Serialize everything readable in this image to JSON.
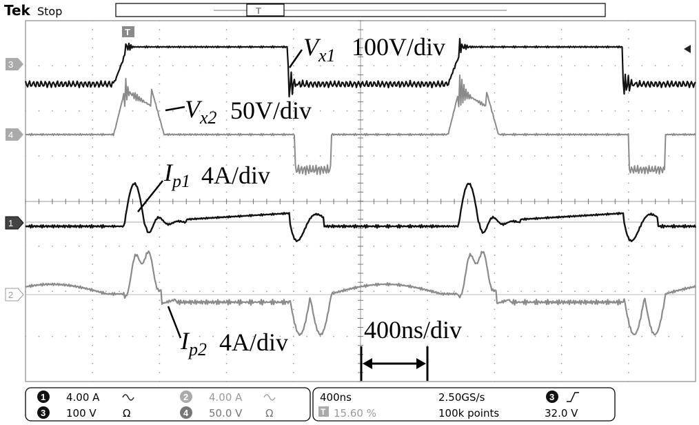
{
  "header": {
    "brand": "Tek",
    "status": "Stop",
    "trigger_marker": "T"
  },
  "channels": {
    "ch1": {
      "num": "1",
      "scale": "4.00 A",
      "coupling_icon": "ac-coupling-icon",
      "color": "#111111"
    },
    "ch2": {
      "num": "2",
      "scale": "4.00 A",
      "coupling_icon": "ac-coupling-icon",
      "color": "#8a8a8a"
    },
    "ch3": {
      "num": "3",
      "scale": "100 V",
      "impedance": "Ω",
      "color": "#111111"
    },
    "ch4": {
      "num": "4",
      "scale": "50.0 V",
      "impedance": "Ω",
      "color": "#8a8a8a"
    }
  },
  "annotations": {
    "vx1": {
      "sym": "V",
      "sub": "x1",
      "scale": "100V/div"
    },
    "vx2": {
      "sym": "V",
      "sub": "x2",
      "scale": "50V/div"
    },
    "ip1": {
      "sym": "I",
      "sub": "p1",
      "scale": "4A/div"
    },
    "ip2": {
      "sym": "I",
      "sub": "p2",
      "scale": "4A/div"
    },
    "time": {
      "scale": "400ns/div"
    }
  },
  "horizontal": {
    "timebase": "400ns",
    "trigger_position": "15.60 %",
    "sample_rate": "2.50GS/s",
    "record_length": "100k points"
  },
  "trigger": {
    "source": "3",
    "slope_icon": "rising-edge-icon",
    "level": "32.0 V"
  },
  "colors": {
    "dark_trace": "#111111",
    "gray_trace": "#8a8a8a",
    "grid": "#9a9a9a"
  }
}
